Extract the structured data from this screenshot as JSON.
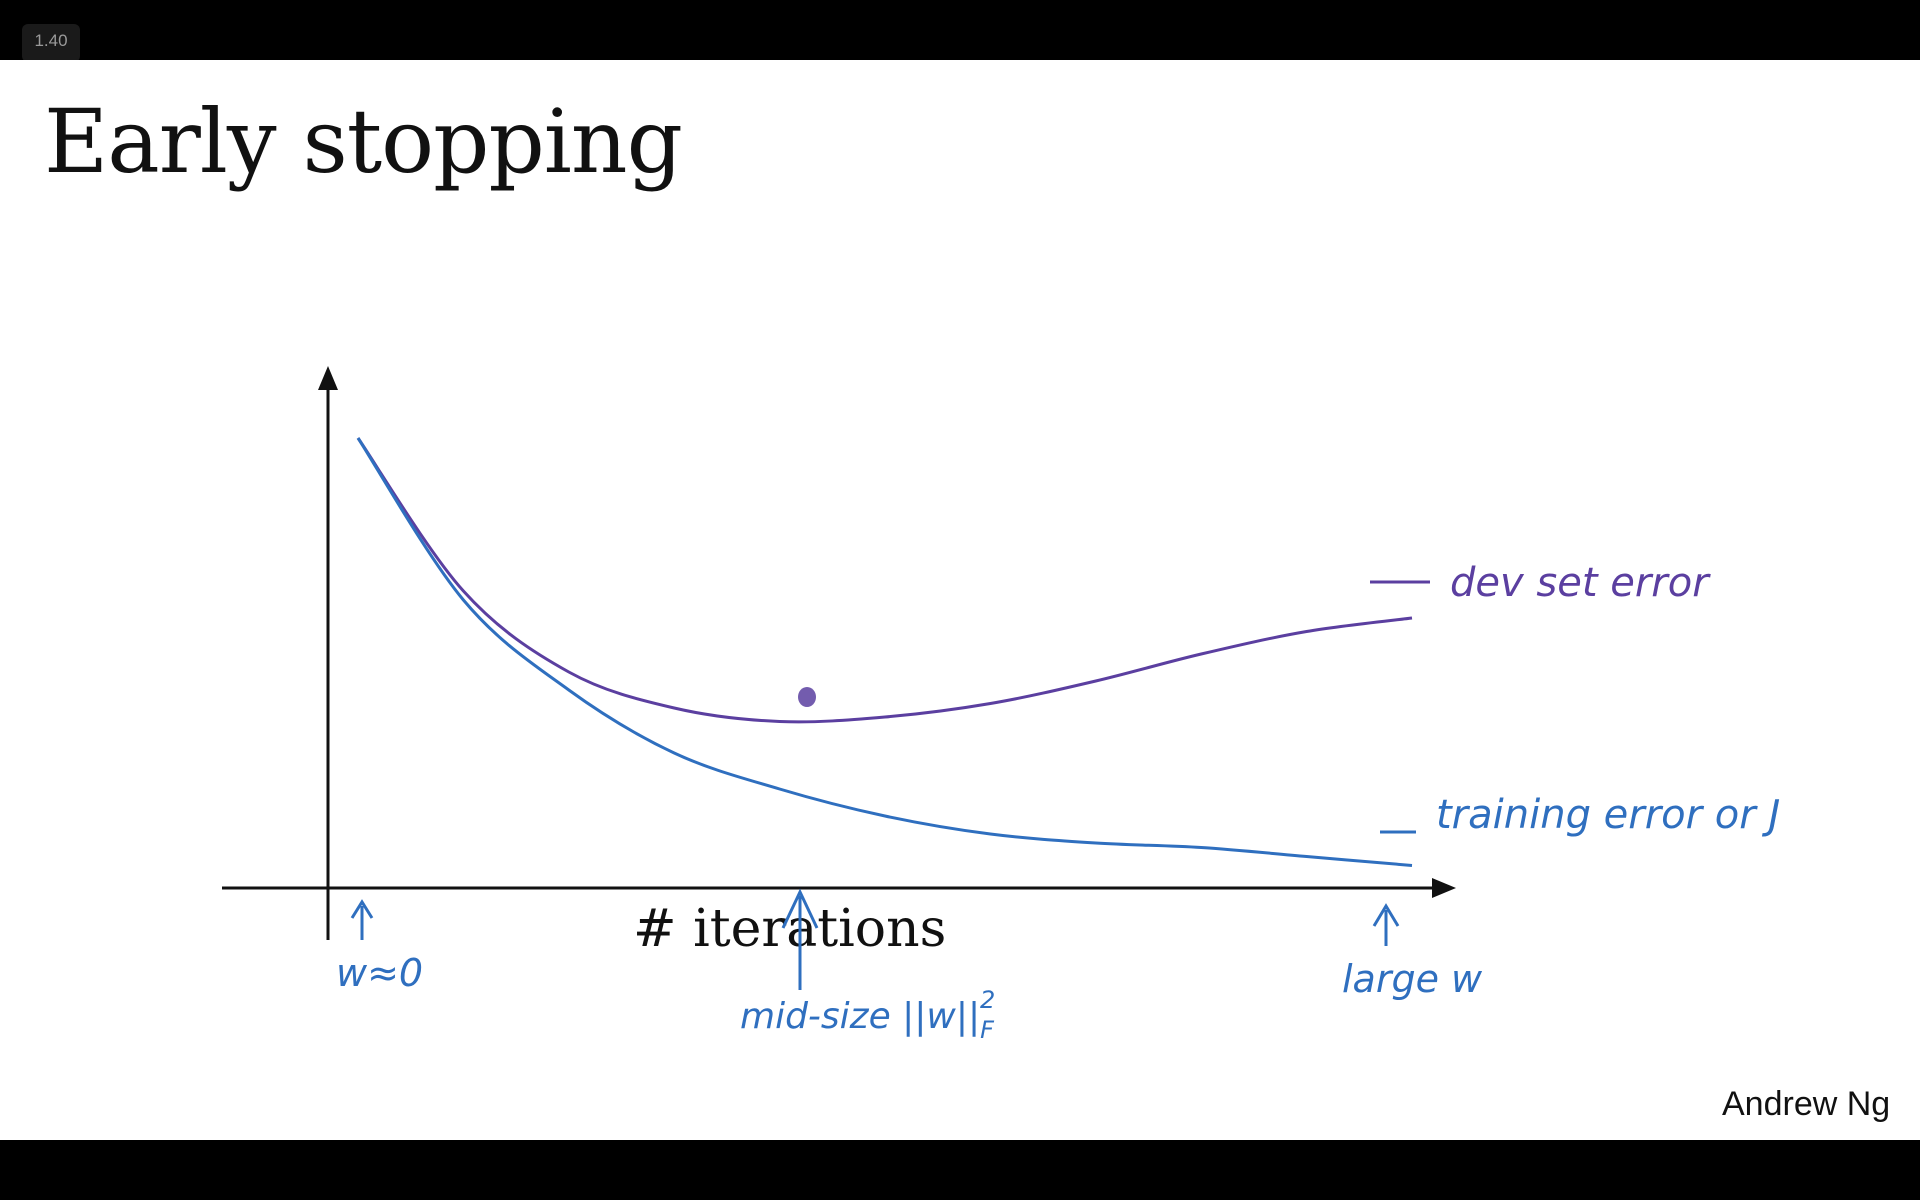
{
  "player": {
    "speed_label": "1.40"
  },
  "slide": {
    "title": "Early stopping",
    "author": "Andrew Ng"
  },
  "colors": {
    "dev_curve": "#5b3fa0",
    "train_curve": "#2f6fbf",
    "ink": "#2f6fbf"
  },
  "chart_data": {
    "type": "line",
    "title": "Early stopping",
    "xlabel": "# iterations",
    "ylabel": "",
    "series": [
      {
        "name": "dev set error",
        "x": [
          0,
          1,
          2,
          3,
          4,
          5,
          6,
          7,
          8,
          9,
          10
        ],
        "values": [
          1.0,
          0.66,
          0.48,
          0.4,
          0.37,
          0.38,
          0.41,
          0.46,
          0.52,
          0.57,
          0.6
        ]
      },
      {
        "name": "training error or J",
        "x": [
          0,
          1,
          2,
          3,
          4,
          5,
          6,
          7,
          8,
          9,
          10
        ],
        "values": [
          1.0,
          0.64,
          0.44,
          0.3,
          0.22,
          0.16,
          0.12,
          0.1,
          0.09,
          0.07,
          0.05
        ]
      }
    ],
    "annotations": {
      "left": "w≈0",
      "middle": "mid-size ||w||",
      "middle_sup": "2",
      "middle_sub": "F",
      "right": "large w"
    }
  }
}
